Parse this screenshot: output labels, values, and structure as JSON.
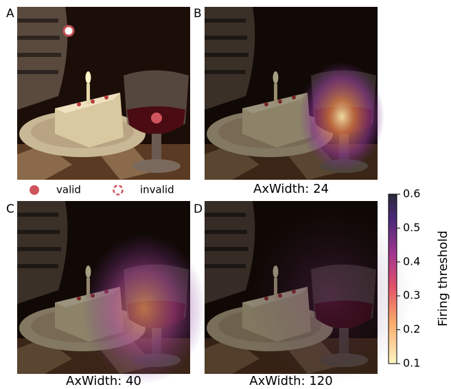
{
  "panels": [
    {
      "letter": "A"
    },
    {
      "letter": "B",
      "caption": "AxWidth: 24"
    },
    {
      "letter": "C",
      "caption": "AxWidth: 40"
    },
    {
      "letter": "D",
      "caption": "AxWidth: 120"
    }
  ],
  "legend": {
    "valid": "valid",
    "invalid": "invalid"
  },
  "colorbar": {
    "label": "Firing threshold",
    "lim": [
      0.1,
      0.6
    ],
    "ticks": [
      0.1,
      0.2,
      0.3,
      0.4,
      0.5,
      0.6
    ]
  }
}
